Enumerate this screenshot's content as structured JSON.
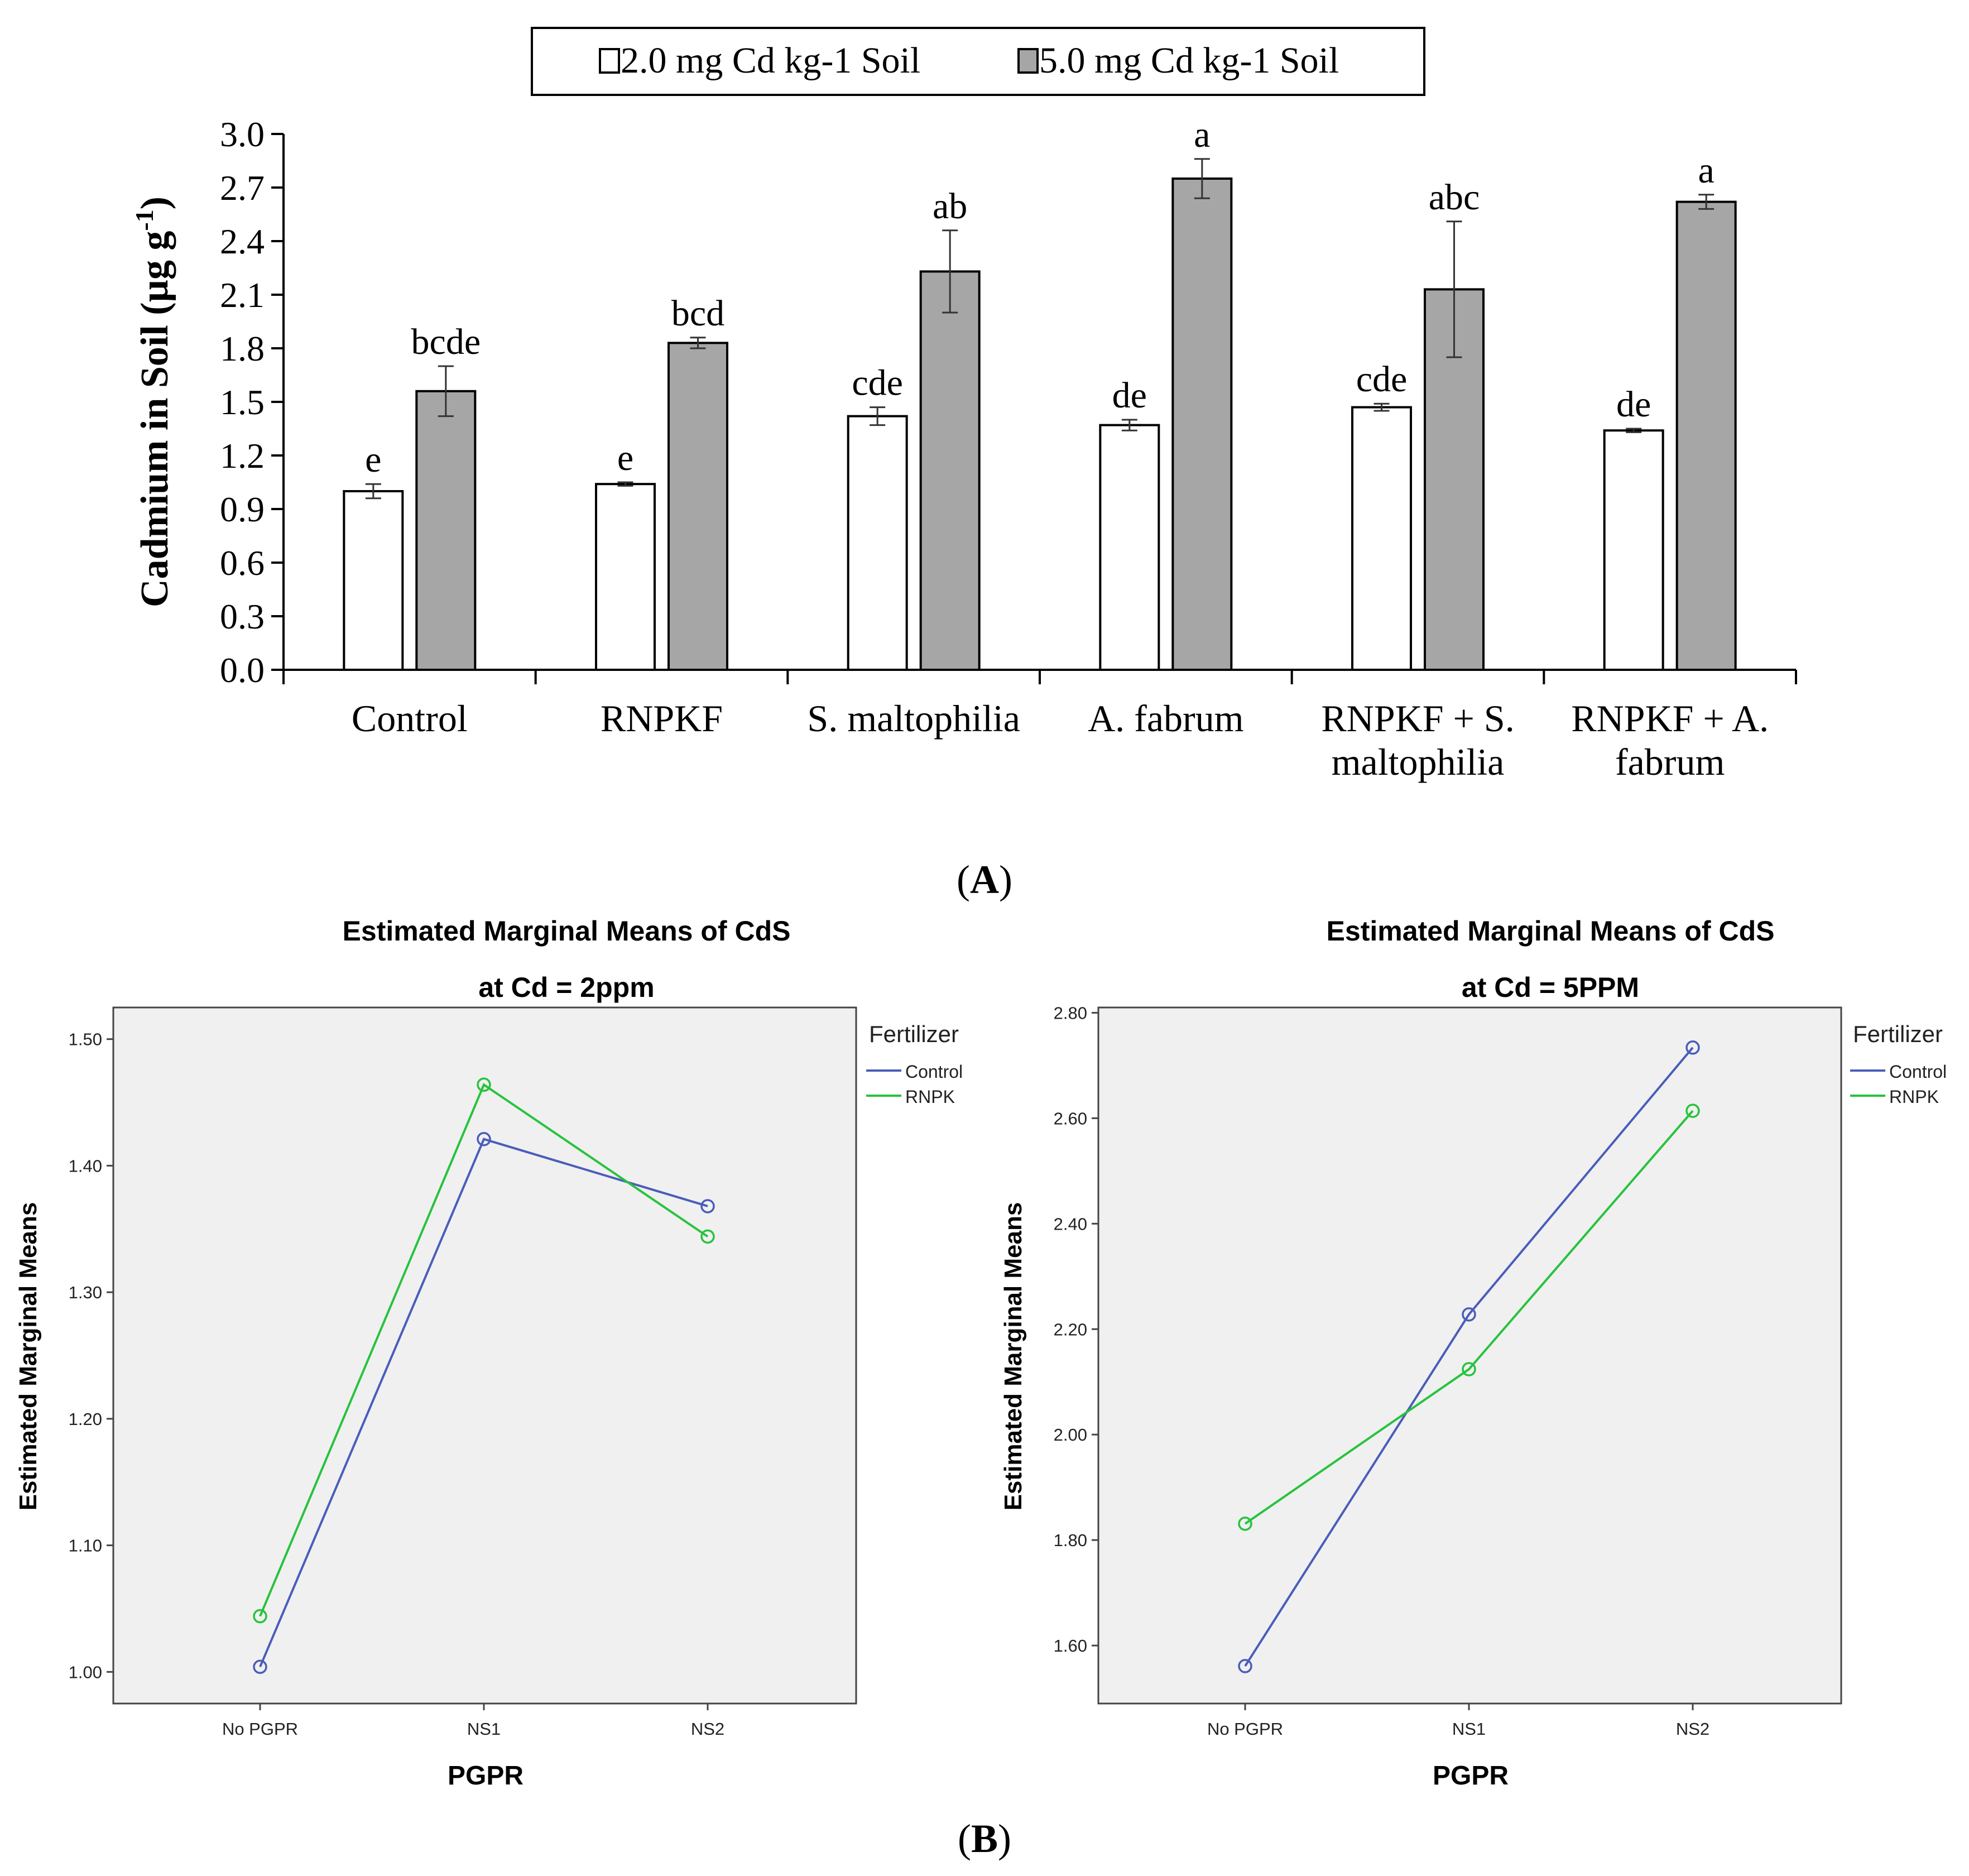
{
  "chart_data": [
    {
      "panel_label": "A",
      "type": "bar",
      "ylabel_main": "Cadmium in Soil (µg g",
      "ylabel_sup": "-1",
      "ylabel_close": ")",
      "ylim": [
        0,
        3.0
      ],
      "yticks": [
        "0.0",
        "0.3",
        "0.6",
        "0.9",
        "1.2",
        "1.5",
        "1.8",
        "2.1",
        "2.4",
        "2.7",
        "3.0"
      ],
      "categories": [
        [
          "Control"
        ],
        [
          "RNPKF"
        ],
        [
          "S. maltophilia"
        ],
        [
          "A. fabrum"
        ],
        [
          "RNPKF + S.",
          "maltophilia"
        ],
        [
          "RNPKF + A.",
          "fabrum"
        ]
      ],
      "legend_position": "top-center",
      "series": [
        {
          "name": "2.0 mg Cd kg-1 Soil",
          "color": "#ffffff",
          "values": [
            1.0,
            1.04,
            1.42,
            1.37,
            1.47,
            1.34
          ],
          "errors": [
            0.04,
            0.01,
            0.05,
            0.03,
            0.02,
            0.01
          ],
          "letters": [
            "e",
            "e",
            "cde",
            "de",
            "cde",
            "de"
          ]
        },
        {
          "name": "5.0 mg Cd kg-1 Soil",
          "color": "#a6a6a6",
          "values": [
            1.56,
            1.83,
            2.23,
            2.75,
            2.13,
            2.62
          ],
          "errors": [
            0.14,
            0.03,
            0.23,
            0.11,
            0.38,
            0.04
          ],
          "letters": [
            "bcde",
            "bcd",
            "ab",
            "a",
            "abc",
            "a"
          ]
        }
      ]
    },
    {
      "type": "line",
      "title": "Estimated Marginal Means of CdS",
      "subtitle": "at Cd = 2ppm",
      "xlabel": "PGPR",
      "ylabel": "Estimated Marginal Means",
      "x": [
        "No PGPR",
        "NS1",
        "NS2"
      ],
      "ylim": [
        0.975,
        1.525
      ],
      "yticks": [
        "1.00",
        "1.10",
        "1.20",
        "1.30",
        "1.40",
        "1.50"
      ],
      "legend_title": "Fertilizer",
      "legend_position": "right",
      "series": [
        {
          "name": "Control",
          "color": "#4a5dbb",
          "values": [
            1.004,
            1.421,
            1.368
          ]
        },
        {
          "name": "RNPK",
          "color": "#27c33d",
          "values": [
            1.044,
            1.464,
            1.344
          ]
        }
      ]
    },
    {
      "type": "line",
      "title": "Estimated Marginal Means of CdS",
      "subtitle": "at Cd = 5PPM",
      "xlabel": "PGPR",
      "ylabel": "Estimated Marginal Means",
      "x": [
        "No PGPR",
        "NS1",
        "NS2"
      ],
      "ylim": [
        1.49,
        2.81
      ],
      "yticks": [
        "1.60",
        "1.80",
        "2.00",
        "2.20",
        "2.40",
        "2.60",
        "2.80"
      ],
      "legend_title": "Fertilizer",
      "legend_position": "right",
      "series": [
        {
          "name": "Control",
          "color": "#4a5dbb",
          "values": [
            1.561,
            2.228,
            2.734
          ]
        },
        {
          "name": "RNPK",
          "color": "#27c33d",
          "values": [
            1.831,
            2.124,
            2.614
          ]
        }
      ]
    }
  ],
  "panel_b_label": "B"
}
